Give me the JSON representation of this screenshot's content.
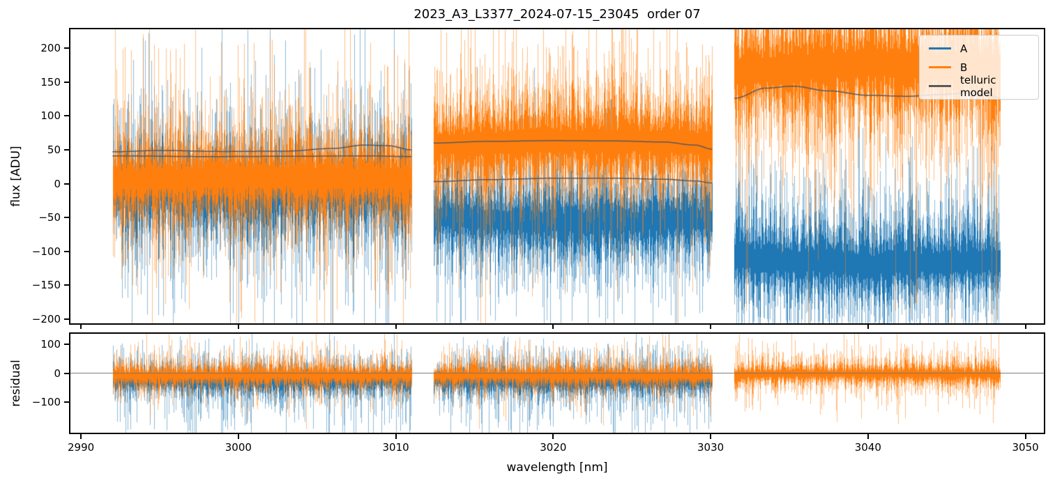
{
  "chart_data": {
    "type": "line",
    "title": "2023_A3_L3377_2024-07-15_23045  order 07",
    "xlabel": "wavelength [nm]",
    "xlim": [
      2989.33,
      3051.17
    ],
    "xticks": [
      {
        "v": 2990,
        "label": "2990"
      },
      {
        "v": 3000,
        "label": "3000"
      },
      {
        "v": 3010,
        "label": "3010"
      },
      {
        "v": 3020,
        "label": "3020"
      },
      {
        "v": 3030,
        "label": "3030"
      },
      {
        "v": 3040,
        "label": "3040"
      },
      {
        "v": 3050,
        "label": "3050"
      }
    ],
    "legend": {
      "position": "upper right",
      "entries": [
        {
          "label": "A",
          "color": "#1f77b4"
        },
        {
          "label": "B",
          "color": "#ff7f0e"
        },
        {
          "label": "telluric model",
          "color": "#595959"
        }
      ]
    },
    "grid": false,
    "panels": [
      {
        "name": "flux",
        "ylabel": "flux [ADU]",
        "ylim": [
          -206.3,
          228
        ],
        "yticks": [
          {
            "v": 200,
            "label": "200"
          },
          {
            "v": 150,
            "label": "150"
          },
          {
            "v": 100,
            "label": "100"
          },
          {
            "v": 50,
            "label": "50"
          },
          {
            "v": 0,
            "label": "0"
          },
          {
            "v": -50,
            "label": "−50"
          },
          {
            "v": -100,
            "label": "−100"
          },
          {
            "v": -150,
            "label": "−150"
          },
          {
            "v": -200,
            "label": "−200"
          }
        ],
        "series": [
          {
            "name": "A",
            "color": "#1f77b4",
            "segments": [
              {
                "x": [
                  2992.0,
                  3011.0
                ],
                "center": [
                  -10,
                  -13,
                  -8
                ],
                "sigma": 65,
                "spike_p": 0.06,
                "spike_up": 2.2,
                "spike_dn": 2.6
              },
              {
                "x": [
                  3012.4,
                  3030.1
                ],
                "center": [
                  -50,
                  -57,
                  -53
                ],
                "sigma": 56,
                "spike_p": 0.05,
                "spike_up": 2.2,
                "spike_dn": 2.4
              },
              {
                "x": [
                  3031.5,
                  3048.4
                ],
                "center": [
                  -110,
                  -120,
                  -113
                ],
                "sigma": 58,
                "spike_p": 0.05,
                "spike_up": 2.4,
                "spike_dn": 2.6
              }
            ]
          },
          {
            "name": "B",
            "color": "#ff7f0e",
            "segments": [
              {
                "x": [
                  2992.0,
                  3011.0
                ],
                "center": [
                  5,
                  10,
                  7
                ],
                "sigma": 60,
                "spike_p": 0.06,
                "spike_up": 2.4,
                "spike_dn": 2.0
              },
              {
                "x": [
                  3012.4,
                  3030.1
                ],
                "center": [
                  57,
                  64,
                  60
                ],
                "sigma": 64,
                "spike_p": 0.06,
                "spike_up": 2.2,
                "spike_dn": 1.9
              },
              {
                "x": [
                  3031.5,
                  3048.4
                ],
                "center": [
                  165,
                  178,
                  170
                ],
                "sigma": 80,
                "spike_p": 0.07,
                "spike_up": 1.8,
                "spike_dn": 2.4
              }
            ]
          }
        ],
        "model": {
          "name": "telluric model",
          "color": "#595959",
          "curves": [
            [
              [
                2992,
                41
              ],
              [
                2998,
                40
              ],
              [
                3004,
                40.5
              ],
              [
                3008,
                41
              ],
              [
                3011,
                40
              ]
            ],
            [
              [
                2992,
                47
              ],
              [
                2995,
                49
              ],
              [
                2999,
                47.5
              ],
              [
                3003,
                48
              ],
              [
                3006,
                52
              ],
              [
                3008,
                57
              ],
              [
                3009.5,
                56
              ],
              [
                3011,
                50
              ]
            ],
            [
              [
                3012.4,
                3
              ],
              [
                3016,
                6
              ],
              [
                3020,
                8
              ],
              [
                3024,
                8
              ],
              [
                3027,
                6.5
              ],
              [
                3029,
                4
              ],
              [
                3030.1,
                1
              ]
            ],
            [
              [
                3012.4,
                60
              ],
              [
                3016,
                62.5
              ],
              [
                3020,
                63.5
              ],
              [
                3024,
                63
              ],
              [
                3027,
                61.5
              ],
              [
                3029,
                57
              ],
              [
                3030.1,
                51
              ]
            ],
            [
              [
                3031.5,
                126
              ],
              [
                3033.5,
                141
              ],
              [
                3035.2,
                144
              ],
              [
                3037.5,
                137
              ],
              [
                3040,
                130.5
              ],
              [
                3042.5,
                129
              ],
              [
                3044.5,
                131.5
              ],
              [
                3046.5,
                134
              ],
              [
                3047.5,
                132
              ],
              [
                3048.4,
                127
              ]
            ]
          ]
        }
      },
      {
        "name": "residual",
        "ylabel": "residual",
        "ylim": [
          -205,
          135.5
        ],
        "yticks": [
          {
            "v": 100,
            "label": "100"
          },
          {
            "v": 0,
            "label": "0"
          },
          {
            "v": -100,
            "label": "−100"
          }
        ],
        "zero_line": {
          "y": 0,
          "color": "#757575"
        },
        "series": [
          {
            "name": "A",
            "color": "#1f77b4",
            "segments": [
              {
                "x": [
                  2992.0,
                  3011.0
                ],
                "center": [
                  -25,
                  -30,
                  -23
                ],
                "sigma": 42,
                "spike_p": 0.2,
                "spike_up": 1.2,
                "spike_dn": 3.0
              },
              {
                "x": [
                  3012.4,
                  3030.1
                ],
                "center": [
                  -27,
                  -31,
                  -25
                ],
                "sigma": 43,
                "spike_p": 0.2,
                "spike_up": 1.2,
                "spike_dn": 3.0
              }
            ]
          },
          {
            "name": "B",
            "color": "#ff7f0e",
            "segments": [
              {
                "x": [
                  2992.0,
                  3011.0
                ],
                "center": [
                  -8,
                  -5,
                  -8
                ],
                "sigma": 38,
                "spike_p": 0.12,
                "spike_up": 1.5,
                "spike_dn": 1.8
              },
              {
                "x": [
                  3012.4,
                  3030.1
                ],
                "center": [
                  -8,
                  -6,
                  -9
                ],
                "sigma": 38,
                "spike_p": 0.12,
                "spike_up": 1.5,
                "spike_dn": 1.8
              },
              {
                "x": [
                  3031.5,
                  3048.4
                ],
                "center": [
                  -4,
                  -1,
                  -5
                ],
                "sigma": 39,
                "spike_p": 0.12,
                "spike_up": 1.5,
                "spike_dn": 2.2
              }
            ]
          }
        ]
      }
    ]
  }
}
